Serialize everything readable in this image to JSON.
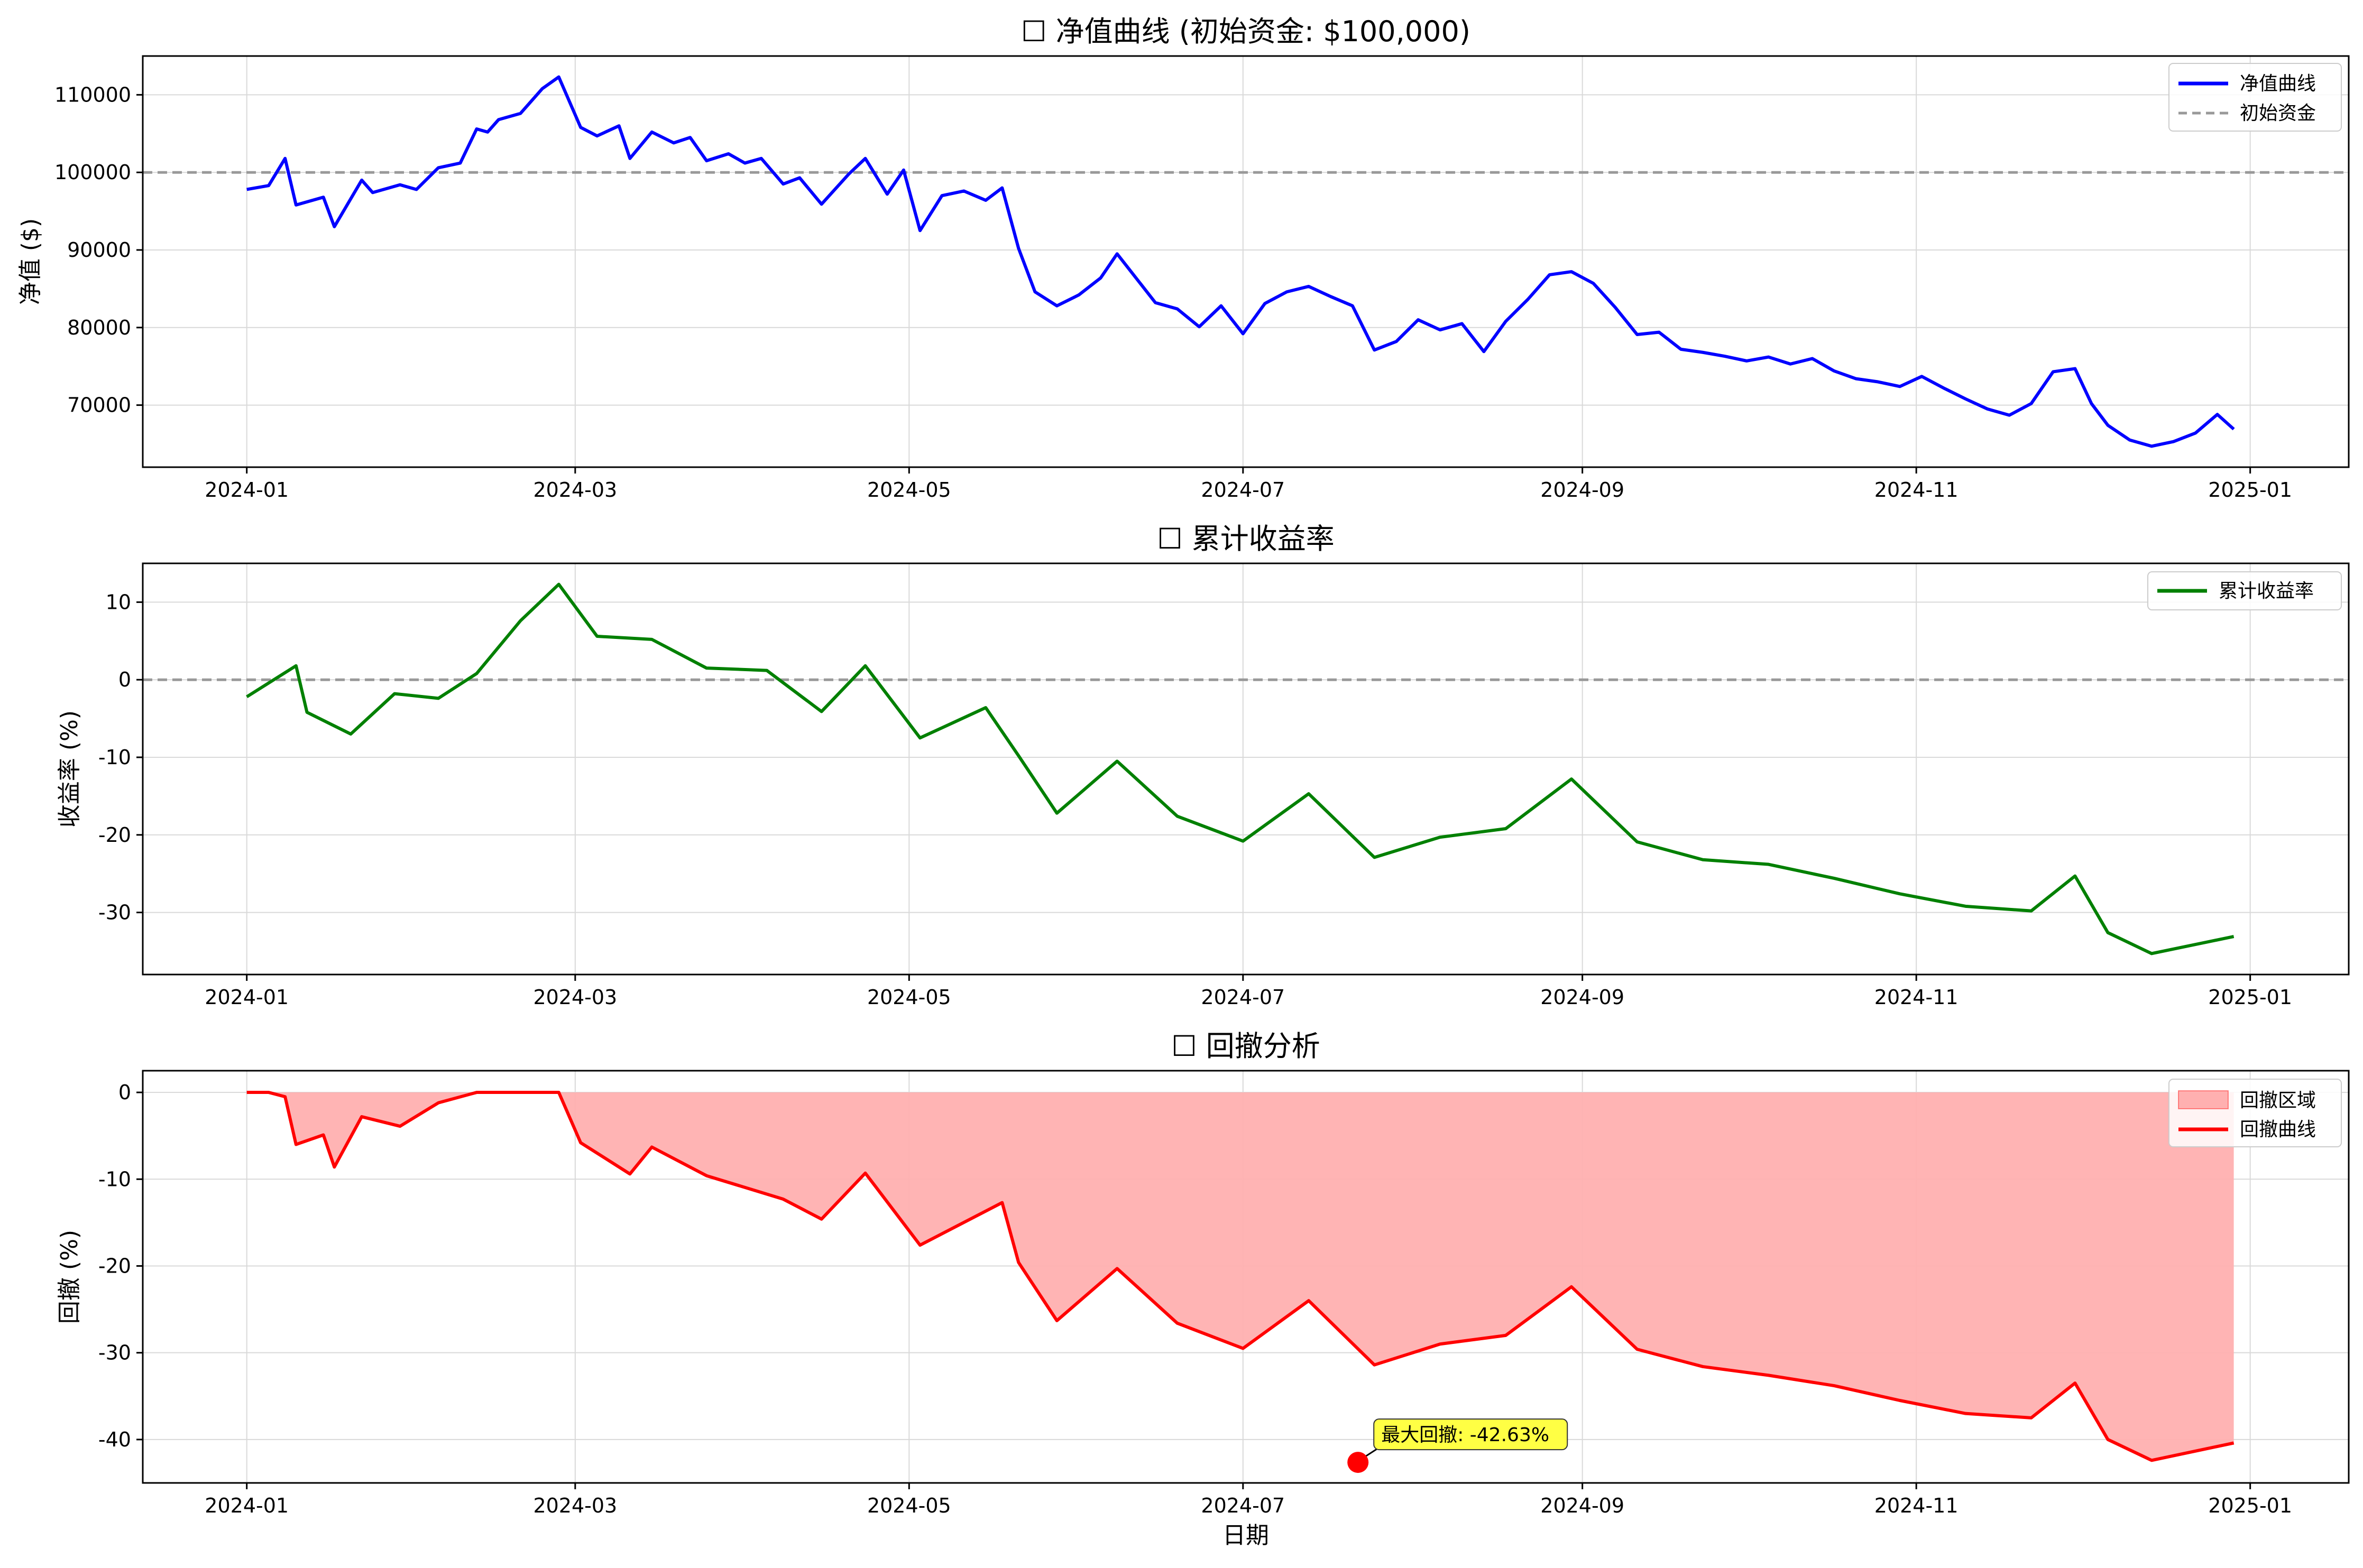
{
  "colors": {
    "equity": "#0000ff",
    "returns": "#008000",
    "drawdown": "#ff0000",
    "drawdown_fill": "#ffb0b0",
    "reference": "#999999",
    "annotation_bg": "#ffff44"
  },
  "chart_data": [
    {
      "type": "line",
      "title": "☐ 净值曲线 (初始资金: $100,000)",
      "xlabel": "",
      "ylabel": "净值 ($)",
      "x_ticks": [
        "2024-01",
        "2024-03",
        "2024-05",
        "2024-07",
        "2024-09",
        "2024-11",
        "2025-01"
      ],
      "y_ticks": [
        70000,
        80000,
        90000,
        100000,
        110000
      ],
      "ylim": [
        62000,
        115000
      ],
      "xlim": [
        "2023-12-13",
        "2025-01-19"
      ],
      "grid": true,
      "legend_position": "top-right",
      "reference_line": {
        "name": "初始资金",
        "y": 100000,
        "style": "dashed"
      },
      "series": [
        {
          "name": "净值曲线",
          "points": [
            [
              "2024-01-01",
              97800
            ],
            [
              "2024-01-05",
              98300
            ],
            [
              "2024-01-08",
              101800
            ],
            [
              "2024-01-10",
              95800
            ],
            [
              "2024-01-15",
              96800
            ],
            [
              "2024-01-17",
              93000
            ],
            [
              "2024-01-22",
              99000
            ],
            [
              "2024-01-24",
              97400
            ],
            [
              "2024-01-29",
              98400
            ],
            [
              "2024-02-01",
              97800
            ],
            [
              "2024-02-05",
              100600
            ],
            [
              "2024-02-09",
              101200
            ],
            [
              "2024-02-12",
              105600
            ],
            [
              "2024-02-14",
              105200
            ],
            [
              "2024-02-16",
              106800
            ],
            [
              "2024-02-20",
              107600
            ],
            [
              "2024-02-24",
              110800
            ],
            [
              "2024-02-27",
              112300
            ],
            [
              "2024-03-02",
              105800
            ],
            [
              "2024-03-05",
              104700
            ],
            [
              "2024-03-09",
              106000
            ],
            [
              "2024-03-11",
              101800
            ],
            [
              "2024-03-15",
              105200
            ],
            [
              "2024-03-19",
              103800
            ],
            [
              "2024-03-22",
              104500
            ],
            [
              "2024-03-25",
              101500
            ],
            [
              "2024-03-29",
              102400
            ],
            [
              "2024-04-01",
              101200
            ],
            [
              "2024-04-04",
              101800
            ],
            [
              "2024-04-08",
              98500
            ],
            [
              "2024-04-11",
              99300
            ],
            [
              "2024-04-15",
              95900
            ],
            [
              "2024-04-20",
              99800
            ],
            [
              "2024-04-23",
              101800
            ],
            [
              "2024-04-27",
              97200
            ],
            [
              "2024-04-30",
              100300
            ],
            [
              "2024-05-03",
              92500
            ],
            [
              "2024-05-07",
              97000
            ],
            [
              "2024-05-11",
              97600
            ],
            [
              "2024-05-15",
              96400
            ],
            [
              "2024-05-18",
              98000
            ],
            [
              "2024-05-21",
              90200
            ],
            [
              "2024-05-24",
              84600
            ],
            [
              "2024-05-28",
              82800
            ],
            [
              "2024-06-01",
              84200
            ],
            [
              "2024-06-05",
              86400
            ],
            [
              "2024-06-08",
              89500
            ],
            [
              "2024-06-12",
              85900
            ],
            [
              "2024-06-15",
              83200
            ],
            [
              "2024-06-19",
              82400
            ],
            [
              "2024-06-23",
              80100
            ],
            [
              "2024-06-27",
              82800
            ],
            [
              "2024-07-01",
              79200
            ],
            [
              "2024-07-05",
              83100
            ],
            [
              "2024-07-09",
              84600
            ],
            [
              "2024-07-13",
              85300
            ],
            [
              "2024-07-17",
              84000
            ],
            [
              "2024-07-21",
              82800
            ],
            [
              "2024-07-25",
              77100
            ],
            [
              "2024-07-29",
              78200
            ],
            [
              "2024-08-02",
              81000
            ],
            [
              "2024-08-06",
              79700
            ],
            [
              "2024-08-10",
              80500
            ],
            [
              "2024-08-14",
              76900
            ],
            [
              "2024-08-18",
              80800
            ],
            [
              "2024-08-22",
              83600
            ],
            [
              "2024-08-26",
              86800
            ],
            [
              "2024-08-30",
              87200
            ],
            [
              "2024-09-03",
              85700
            ],
            [
              "2024-09-07",
              82600
            ],
            [
              "2024-09-11",
              79100
            ],
            [
              "2024-09-15",
              79400
            ],
            [
              "2024-09-19",
              77200
            ],
            [
              "2024-09-23",
              76800
            ],
            [
              "2024-09-27",
              76300
            ],
            [
              "2024-10-01",
              75700
            ],
            [
              "2024-10-05",
              76200
            ],
            [
              "2024-10-09",
              75300
            ],
            [
              "2024-10-13",
              76000
            ],
            [
              "2024-10-17",
              74400
            ],
            [
              "2024-10-21",
              73400
            ],
            [
              "2024-10-25",
              73000
            ],
            [
              "2024-10-29",
              72400
            ],
            [
              "2024-11-02",
              73700
            ],
            [
              "2024-11-06",
              72200
            ],
            [
              "2024-11-10",
              70800
            ],
            [
              "2024-11-14",
              69500
            ],
            [
              "2024-11-18",
              68700
            ],
            [
              "2024-11-22",
              70200
            ],
            [
              "2024-11-26",
              74300
            ],
            [
              "2024-11-30",
              74700
            ],
            [
              "2024-12-03",
              70200
            ],
            [
              "2024-12-06",
              67400
            ],
            [
              "2024-12-10",
              65500
            ],
            [
              "2024-12-14",
              64700
            ],
            [
              "2024-12-18",
              65300
            ],
            [
              "2024-12-22",
              66400
            ],
            [
              "2024-12-26",
              68800
            ],
            [
              "2024-12-29",
              66900
            ]
          ]
        }
      ],
      "series_note": ""
    },
    {
      "type": "line",
      "title": "☐ 累计收益率",
      "xlabel": "",
      "ylabel": "收益率 (%)",
      "x_ticks": [
        "2024-01",
        "2024-03",
        "2024-05",
        "2024-07",
        "2024-09",
        "2024-11",
        "2025-01"
      ],
      "y_ticks": [
        -30,
        -20,
        -10,
        0,
        10
      ],
      "ylim": [
        -38,
        15
      ],
      "xlim": [
        "2023-12-13",
        "2025-01-19"
      ],
      "grid": true,
      "legend_position": "top-right",
      "reference_line": {
        "y": 0,
        "style": "dashed"
      },
      "series": [
        {
          "name": "累计收益率",
          "points": [
            [
              "2024-01-01",
              -2.2
            ],
            [
              "2024-01-10",
              1.8
            ],
            [
              "2024-01-12",
              -4.2
            ],
            [
              "2024-01-20",
              -7.0
            ],
            [
              "2024-01-28",
              -1.8
            ],
            [
              "2024-02-05",
              -2.4
            ],
            [
              "2024-02-12",
              0.8
            ],
            [
              "2024-02-20",
              7.6
            ],
            [
              "2024-02-27",
              12.3
            ],
            [
              "2024-03-05",
              5.6
            ],
            [
              "2024-03-15",
              5.2
            ],
            [
              "2024-03-25",
              1.5
            ],
            [
              "2024-04-05",
              1.2
            ],
            [
              "2024-04-15",
              -4.1
            ],
            [
              "2024-04-23",
              1.8
            ],
            [
              "2024-05-03",
              -7.5
            ],
            [
              "2024-05-15",
              -3.6
            ],
            [
              "2024-05-21",
              -9.8
            ],
            [
              "2024-05-28",
              -17.2
            ],
            [
              "2024-06-08",
              -10.5
            ],
            [
              "2024-06-19",
              -17.6
            ],
            [
              "2024-07-01",
              -20.8
            ],
            [
              "2024-07-13",
              -14.7
            ],
            [
              "2024-07-25",
              -22.9
            ],
            [
              "2024-08-06",
              -20.3
            ],
            [
              "2024-08-18",
              -19.2
            ],
            [
              "2024-08-30",
              -12.8
            ],
            [
              "2024-09-11",
              -20.9
            ],
            [
              "2024-09-23",
              -23.2
            ],
            [
              "2024-10-05",
              -23.8
            ],
            [
              "2024-10-17",
              -25.6
            ],
            [
              "2024-10-29",
              -27.6
            ],
            [
              "2024-11-10",
              -29.2
            ],
            [
              "2024-11-22",
              -29.8
            ],
            [
              "2024-11-30",
              -25.3
            ],
            [
              "2024-12-06",
              -32.6
            ],
            [
              "2024-12-14",
              -35.3
            ],
            [
              "2024-12-29",
              -33.1
            ]
          ]
        }
      ]
    },
    {
      "type": "area",
      "title": "☐ 回撤分析",
      "xlabel": "日期",
      "ylabel": "回撤 (%)",
      "x_ticks": [
        "2024-01",
        "2024-03",
        "2024-05",
        "2024-07",
        "2024-09",
        "2024-11",
        "2025-01"
      ],
      "y_ticks": [
        -40,
        -30,
        -20,
        -10,
        0
      ],
      "ylim": [
        -45,
        2.5
      ],
      "xlim": [
        "2023-12-13",
        "2025-01-19"
      ],
      "grid": true,
      "legend_position": "top-right",
      "annotation": {
        "text": "最大回撤: -42.63%",
        "x": "2024-07-22",
        "y": -42.63
      },
      "series": [
        {
          "name": "回撤区域",
          "kind": "fill"
        },
        {
          "name": "回撤曲线",
          "points": [
            [
              "2024-01-01",
              0
            ],
            [
              "2024-01-05",
              0
            ],
            [
              "2024-01-08",
              -0.5
            ],
            [
              "2024-01-10",
              -6.0
            ],
            [
              "2024-01-15",
              -4.9
            ],
            [
              "2024-01-17",
              -8.6
            ],
            [
              "2024-01-22",
              -2.8
            ],
            [
              "2024-01-29",
              -3.9
            ],
            [
              "2024-02-05",
              -1.2
            ],
            [
              "2024-02-12",
              0
            ],
            [
              "2024-02-27",
              0
            ],
            [
              "2024-03-02",
              -5.8
            ],
            [
              "2024-03-11",
              -9.4
            ],
            [
              "2024-03-15",
              -6.3
            ],
            [
              "2024-03-25",
              -9.6
            ],
            [
              "2024-04-08",
              -12.3
            ],
            [
              "2024-04-15",
              -14.6
            ],
            [
              "2024-04-23",
              -9.3
            ],
            [
              "2024-05-03",
              -17.6
            ],
            [
              "2024-05-18",
              -12.7
            ],
            [
              "2024-05-21",
              -19.6
            ],
            [
              "2024-05-28",
              -26.3
            ],
            [
              "2024-06-08",
              -20.3
            ],
            [
              "2024-06-19",
              -26.6
            ],
            [
              "2024-07-01",
              -29.5
            ],
            [
              "2024-07-13",
              -24.0
            ],
            [
              "2024-07-25",
              -31.4
            ],
            [
              "2024-08-06",
              -29.0
            ],
            [
              "2024-08-18",
              -28.0
            ],
            [
              "2024-08-30",
              -22.4
            ],
            [
              "2024-09-11",
              -29.6
            ],
            [
              "2024-09-23",
              -31.6
            ],
            [
              "2024-10-05",
              -32.6
            ],
            [
              "2024-10-17",
              -33.8
            ],
            [
              "2024-10-29",
              -35.5
            ],
            [
              "2024-11-10",
              -37.0
            ],
            [
              "2024-11-22",
              -37.5
            ],
            [
              "2024-11-30",
              -33.5
            ],
            [
              "2024-12-06",
              -40.0
            ],
            [
              "2024-12-14",
              -42.4
            ],
            [
              "2024-12-29",
              -40.4
            ]
          ]
        }
      ]
    }
  ]
}
